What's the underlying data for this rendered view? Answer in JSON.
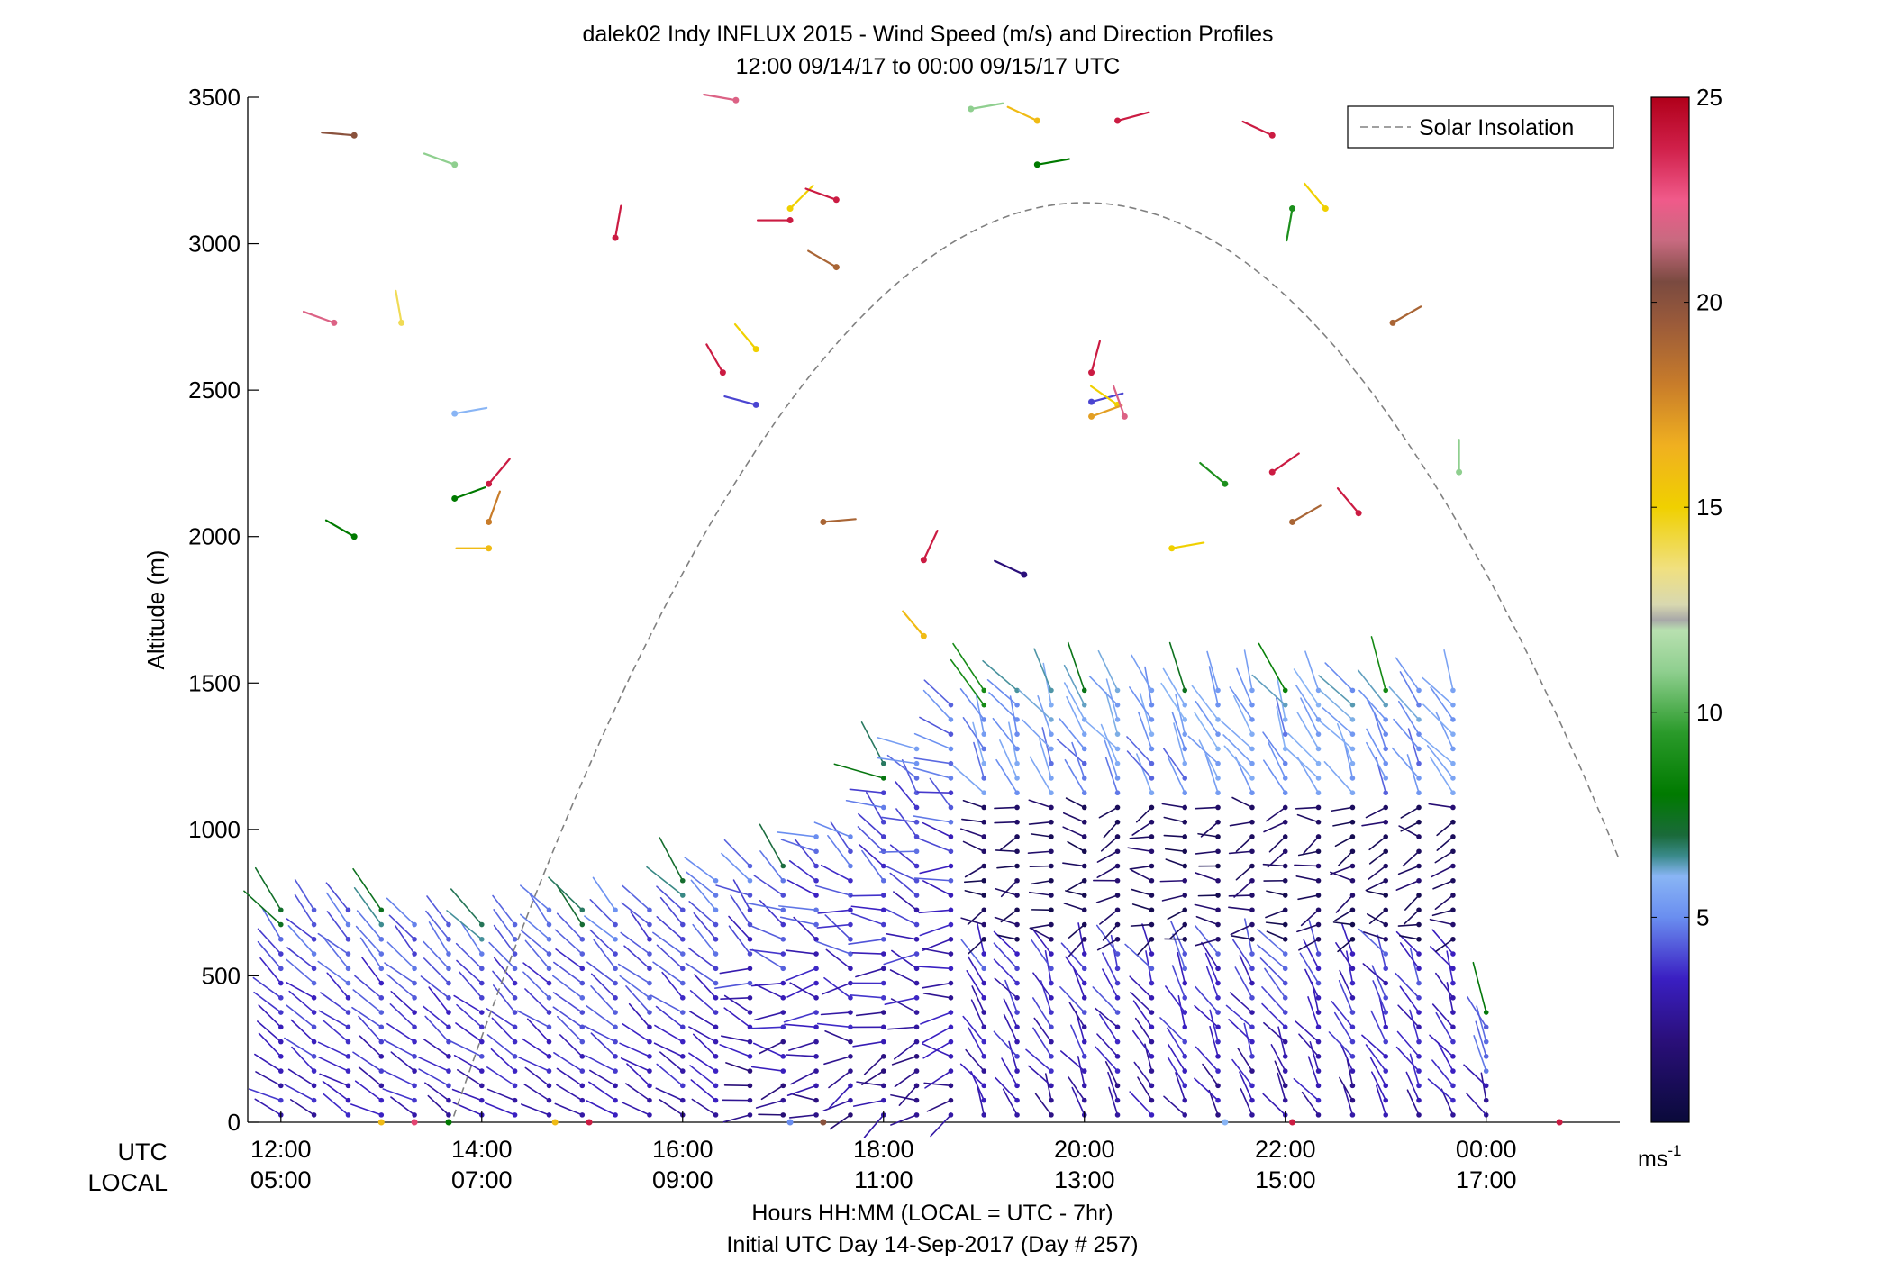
{
  "chart_data": {
    "type": "scatter",
    "title_line1": "dalek02 Indy INFLUX 2015 - Wind Speed (m/s) and Direction Profiles",
    "title_line2": "12:00 09/14/17 to 00:00 09/15/17  UTC",
    "ylabel": "Altitude (m)",
    "xlabel": "Hours HH:MM  (LOCAL = UTC - 7hr)",
    "xlabel2": "Initial UTC Day 14-Sep-2017 (Day # 257)",
    "row_label_utc": "UTC",
    "row_label_local": "LOCAL",
    "ylim": [
      0,
      3500
    ],
    "xlim_hours_utc": [
      11.67,
      25.33
    ],
    "y_ticks": [
      "0",
      "500",
      "1000",
      "1500",
      "2000",
      "2500",
      "3000",
      "3500"
    ],
    "x_ticks_utc": [
      "12:00",
      "14:00",
      "16:00",
      "18:00",
      "20:00",
      "22:00",
      "00:00"
    ],
    "x_ticks_local": [
      "05:00",
      "07:00",
      "09:00",
      "11:00",
      "13:00",
      "15:00",
      "17:00"
    ],
    "legend": {
      "label": "Solar Insolation",
      "placement": "top-right",
      "line_color": "#808080",
      "line_style": "dashed"
    },
    "colorbar": {
      "label": "ms",
      "label_superscript": "-1",
      "range": [
        0,
        25
      ],
      "ticks": [
        "5",
        "10",
        "15",
        "20",
        "25"
      ]
    },
    "solar_insolation": {
      "peak_altitude": 3140,
      "peak_hour_utc": 20.0,
      "rise_hour_utc": 13.67,
      "set_hour_utc": 26.3
    },
    "profile_hours_utc": [
      12.0,
      12.33,
      12.67,
      13.0,
      13.33,
      13.67,
      14.0,
      14.33,
      14.67,
      15.0,
      15.33,
      15.67,
      16.0,
      16.33,
      16.67,
      17.0,
      17.33,
      17.67,
      18.0,
      18.33,
      18.67,
      19.0,
      19.33,
      19.67,
      20.0,
      20.33,
      20.67,
      21.0,
      21.33,
      21.67,
      22.0,
      22.33,
      22.67,
      23.0,
      23.33,
      23.67,
      24.0
    ],
    "profile_top_altitude_m": [
      730,
      730,
      730,
      730,
      720,
      710,
      700,
      720,
      730,
      730,
      730,
      730,
      830,
      860,
      880,
      920,
      980,
      1000,
      1240,
      1300,
      1430,
      1480,
      1520,
      1520,
      1520,
      1520,
      1520,
      1520,
      1520,
      1520,
      1520,
      1520,
      1520,
      1520,
      1520,
      1500,
      420
    ],
    "upper_barbs": [
      {
        "hour": 12.73,
        "alt": 3370,
        "speed": 20,
        "dir": 275
      },
      {
        "hour": 13.73,
        "alt": 3270,
        "speed": 11,
        "dir": 290
      },
      {
        "hour": 16.53,
        "alt": 3490,
        "speed": 22,
        "dir": 280
      },
      {
        "hour": 17.07,
        "alt": 3120,
        "speed": 15,
        "dir": 45
      },
      {
        "hour": 17.07,
        "alt": 3080,
        "speed": 24,
        "dir": 270
      },
      {
        "hour": 17.53,
        "alt": 3150,
        "speed": 24,
        "dir": 290
      },
      {
        "hour": 17.53,
        "alt": 2920,
        "speed": 19,
        "dir": 300
      },
      {
        "hour": 15.33,
        "alt": 3020,
        "speed": 24,
        "dir": 10
      },
      {
        "hour": 18.87,
        "alt": 3460,
        "speed": 11,
        "dir": 80
      },
      {
        "hour": 19.53,
        "alt": 3420,
        "speed": 16,
        "dir": 295
      },
      {
        "hour": 19.53,
        "alt": 3270,
        "speed": 8,
        "dir": 80
      },
      {
        "hour": 20.33,
        "alt": 3420,
        "speed": 24,
        "dir": 75
      },
      {
        "hour": 21.87,
        "alt": 3370,
        "speed": 24,
        "dir": 295
      },
      {
        "hour": 22.07,
        "alt": 3120,
        "speed": 9,
        "dir": 190
      },
      {
        "hour": 22.4,
        "alt": 3120,
        "speed": 15,
        "dir": 320
      },
      {
        "hour": 23.07,
        "alt": 2730,
        "speed": 19,
        "dir": 60
      },
      {
        "hour": 12.53,
        "alt": 2730,
        "speed": 22,
        "dir": 290
      },
      {
        "hour": 13.2,
        "alt": 2730,
        "speed": 14,
        "dir": 350
      },
      {
        "hour": 16.4,
        "alt": 2560,
        "speed": 24,
        "dir": 330
      },
      {
        "hour": 16.73,
        "alt": 2640,
        "speed": 15,
        "dir": 320
      },
      {
        "hour": 16.73,
        "alt": 2450,
        "speed": 4,
        "dir": 285
      },
      {
        "hour": 13.73,
        "alt": 2420,
        "speed": 6,
        "dir": 80
      },
      {
        "hour": 14.07,
        "alt": 2180,
        "speed": 24,
        "dir": 40
      },
      {
        "hour": 13.73,
        "alt": 2130,
        "speed": 8,
        "dir": 70
      },
      {
        "hour": 12.73,
        "alt": 2000,
        "speed": 8,
        "dir": 300
      },
      {
        "hour": 14.07,
        "alt": 2050,
        "speed": 18,
        "dir": 20
      },
      {
        "hour": 14.07,
        "alt": 1960,
        "speed": 16,
        "dir": 270
      },
      {
        "hour": 17.4,
        "alt": 2050,
        "speed": 19,
        "dir": 85
      },
      {
        "hour": 18.4,
        "alt": 1920,
        "speed": 24,
        "dir": 25
      },
      {
        "hour": 19.4,
        "alt": 1870,
        "speed": 2,
        "dir": 295
      },
      {
        "hour": 18.4,
        "alt": 1660,
        "speed": 16,
        "dir": 320
      },
      {
        "hour": 20.07,
        "alt": 2560,
        "speed": 24,
        "dir": 15
      },
      {
        "hour": 20.07,
        "alt": 2460,
        "speed": 4,
        "dir": 75
      },
      {
        "hour": 20.33,
        "alt": 2450,
        "speed": 15,
        "dir": 305
      },
      {
        "hour": 20.07,
        "alt": 2410,
        "speed": 17,
        "dir": 70
      },
      {
        "hour": 20.4,
        "alt": 2410,
        "speed": 22,
        "dir": 340
      },
      {
        "hour": 21.4,
        "alt": 2180,
        "speed": 9,
        "dir": 310
      },
      {
        "hour": 21.87,
        "alt": 2220,
        "speed": 24,
        "dir": 55
      },
      {
        "hour": 22.07,
        "alt": 2050,
        "speed": 19,
        "dir": 60
      },
      {
        "hour": 22.73,
        "alt": 2080,
        "speed": 24,
        "dir": 320
      },
      {
        "hour": 20.87,
        "alt": 1960,
        "speed": 15,
        "dir": 80
      },
      {
        "hour": 23.73,
        "alt": 2220,
        "speed": 11,
        "dir": 0
      }
    ]
  }
}
